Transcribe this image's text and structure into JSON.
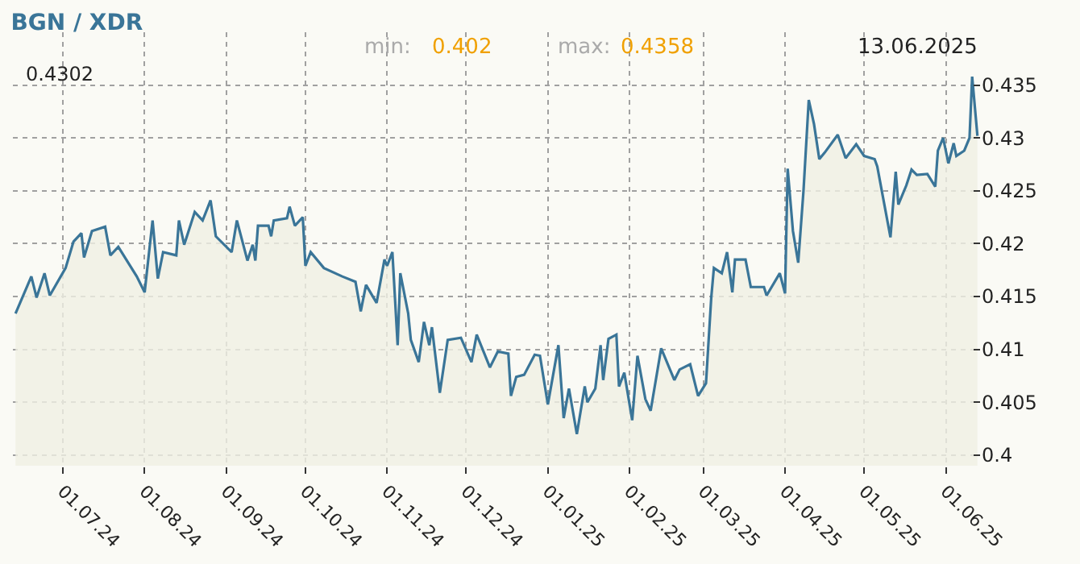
{
  "chart_data": {
    "type": "area",
    "title": "BGN / XDR",
    "annotations": [
      "min:",
      "0.402",
      "max:",
      "0.4358",
      "13.06.2025",
      "0.4302"
    ],
    "x": [
      "2024-06-13",
      "2024-06-19",
      "2024-06-21",
      "2024-06-24",
      "2024-06-26",
      "2024-07-02",
      "2024-07-05",
      "2024-07-08",
      "2024-07-09",
      "2024-07-12",
      "2024-07-17",
      "2024-07-19",
      "2024-07-22",
      "2024-07-29",
      "2024-08-01",
      "2024-08-04",
      "2024-08-06",
      "2024-08-08",
      "2024-08-13",
      "2024-08-14",
      "2024-08-16",
      "2024-08-20",
      "2024-08-23",
      "2024-08-26",
      "2024-08-28",
      "2024-09-03",
      "2024-09-05",
      "2024-09-09",
      "2024-09-11",
      "2024-09-12",
      "2024-09-13",
      "2024-09-17",
      "2024-09-18",
      "2024-09-19",
      "2024-09-24",
      "2024-09-25",
      "2024-09-27",
      "2024-09-30",
      "2024-10-01",
      "2024-10-03",
      "2024-10-08",
      "2024-10-15",
      "2024-10-20",
      "2024-10-22",
      "2024-10-24",
      "2024-10-28",
      "2024-10-31",
      "2024-11-01",
      "2024-11-03",
      "2024-11-05",
      "2024-11-06",
      "2024-11-09",
      "2024-11-10",
      "2024-11-13",
      "2024-11-15",
      "2024-11-17",
      "2024-11-18",
      "2024-11-21",
      "2024-11-24",
      "2024-11-29",
      "2024-12-03",
      "2024-12-05",
      "2024-12-10",
      "2024-12-13",
      "2024-12-17",
      "2024-12-18",
      "2024-12-20",
      "2024-12-23",
      "2024-12-27",
      "2024-12-29",
      "2025-01-01",
      "2025-01-05",
      "2025-01-07",
      "2025-01-09",
      "2025-01-12",
      "2025-01-15",
      "2025-01-16",
      "2025-01-19",
      "2025-01-21",
      "2025-01-22",
      "2025-01-24",
      "2025-01-27",
      "2025-01-28",
      "2025-01-30",
      "2025-02-02",
      "2025-02-04",
      "2025-02-07",
      "2025-02-09",
      "2025-02-13",
      "2025-02-18",
      "2025-02-20",
      "2025-02-24",
      "2025-02-27",
      "2025-03-02",
      "2025-03-04",
      "2025-03-05",
      "2025-03-08",
      "2025-03-10",
      "2025-03-12",
      "2025-03-13",
      "2025-03-17",
      "2025-03-19",
      "2025-03-24",
      "2025-03-25",
      "2025-03-30",
      "2025-04-01",
      "2025-04-02",
      "2025-04-04",
      "2025-04-06",
      "2025-04-08",
      "2025-04-10",
      "2025-04-12",
      "2025-04-14",
      "2025-04-16",
      "2025-04-21",
      "2025-04-24",
      "2025-04-28",
      "2025-05-01",
      "2025-05-05",
      "2025-05-06",
      "2025-05-11",
      "2025-05-13",
      "2025-05-14",
      "2025-05-17",
      "2025-05-19",
      "2025-05-21",
      "2025-05-25",
      "2025-05-28",
      "2025-05-29",
      "2025-05-31",
      "2025-06-02",
      "2025-06-04",
      "2025-06-05",
      "2025-06-08",
      "2025-06-10",
      "2025-06-11",
      "2025-06-13"
    ],
    "series": [
      {
        "color": "#3a7598",
        "values": [
          0.4134,
          0.4169,
          0.4149,
          0.4172,
          0.4151,
          0.4177,
          0.4202,
          0.421,
          0.4187,
          0.4212,
          0.4216,
          0.4189,
          0.4197,
          0.4169,
          0.4154,
          0.4222,
          0.4167,
          0.4192,
          0.4189,
          0.4222,
          0.4199,
          0.423,
          0.4222,
          0.4241,
          0.4207,
          0.4192,
          0.4222,
          0.4184,
          0.4199,
          0.4184,
          0.4217,
          0.4217,
          0.4207,
          0.4222,
          0.4224,
          0.4235,
          0.4217,
          0.4225,
          0.4179,
          0.4192,
          0.4177,
          0.4169,
          0.4164,
          0.4136,
          0.4161,
          0.4144,
          0.4185,
          0.4179,
          0.4192,
          0.4104,
          0.4172,
          0.4134,
          0.4109,
          0.4088,
          0.4126,
          0.4104,
          0.4121,
          0.4059,
          0.4109,
          0.4111,
          0.4088,
          0.4114,
          0.4083,
          0.4098,
          0.4096,
          0.4056,
          0.4074,
          0.4076,
          0.4095,
          0.4094,
          0.4048,
          0.4104,
          0.4035,
          0.4063,
          0.402,
          0.4065,
          0.405,
          0.4063,
          0.4104,
          0.4071,
          0.411,
          0.4114,
          0.4065,
          0.4078,
          0.4033,
          0.4094,
          0.4053,
          0.4042,
          0.4101,
          0.4071,
          0.4081,
          0.4086,
          0.4056,
          0.4068,
          0.4149,
          0.4177,
          0.4172,
          0.4192,
          0.4154,
          0.4185,
          0.4185,
          0.4159,
          0.4159,
          0.4151,
          0.4172,
          0.4153,
          0.4271,
          0.4212,
          0.4182,
          0.425,
          0.4336,
          0.4313,
          0.428,
          0.4286,
          0.4303,
          0.4281,
          0.4294,
          0.4283,
          0.428,
          0.4273,
          0.4206,
          0.4268,
          0.4237,
          0.4255,
          0.427,
          0.4265,
          0.4266,
          0.4254,
          0.4288,
          0.43,
          0.4276,
          0.4295,
          0.4283,
          0.4288,
          0.43,
          0.4358,
          0.4302
        ]
      }
    ],
    "xlim": [
      "2024-06-12",
      "2025-06-14"
    ],
    "xticks": [
      {
        "value": "2024-07-01",
        "label": "01.07.24"
      },
      {
        "value": "2024-08-01",
        "label": "01.08.24"
      },
      {
        "value": "2024-09-01",
        "label": "01.09.24"
      },
      {
        "value": "2024-10-01",
        "label": "01.10.24"
      },
      {
        "value": "2024-11-01",
        "label": "01.11.24"
      },
      {
        "value": "2024-12-01",
        "label": "01.12.24"
      },
      {
        "value": "2025-01-01",
        "label": "01.01.25"
      },
      {
        "value": "2025-02-01",
        "label": "01.02.25"
      },
      {
        "value": "2025-03-01",
        "label": "01.03.25"
      },
      {
        "value": "2025-04-01",
        "label": "01.04.25"
      },
      {
        "value": "2025-05-01",
        "label": "01.05.25"
      },
      {
        "value": "2025-06-01",
        "label": "01.06.25"
      }
    ],
    "ylim": [
      0.399,
      0.44
    ],
    "yticks": [
      0.4,
      0.405,
      0.41,
      0.415,
      0.42,
      0.425,
      0.43,
      0.435
    ],
    "grid": true
  }
}
